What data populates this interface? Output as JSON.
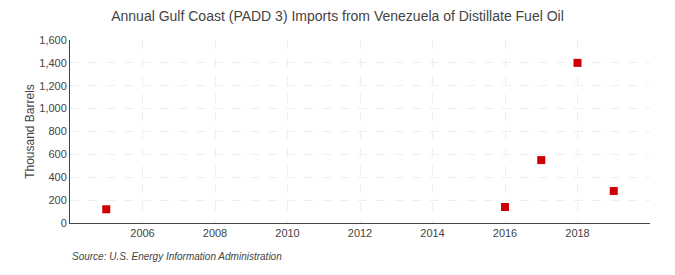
{
  "chart_data": {
    "type": "scatter",
    "title": "Annual Gulf Coast (PADD 3) Imports from Venezuela of Distillate Fuel Oil",
    "ylabel": "Thousand Barrels",
    "annotations": [
      "Source: U.S. Energy Information Administration"
    ],
    "x": [
      2005,
      2016,
      2017,
      2018,
      2019
    ],
    "values": [
      120,
      140,
      550,
      1400,
      280
    ],
    "color": "#cc0000",
    "marker": "square",
    "xlim": [
      2004,
      2020
    ],
    "xticks": [
      2006,
      2008,
      2010,
      2012,
      2014,
      2016,
      2018
    ],
    "ylim": [
      0,
      1600
    ],
    "yticks": [
      0,
      200,
      400,
      600,
      800,
      {
        "value": 1000,
        "label": "1,000"
      },
      {
        "value": 1200,
        "label": "1,200"
      },
      {
        "value": 1400,
        "label": "1,400"
      },
      {
        "value": 1600,
        "label": "1,600"
      }
    ],
    "grid": true
  }
}
